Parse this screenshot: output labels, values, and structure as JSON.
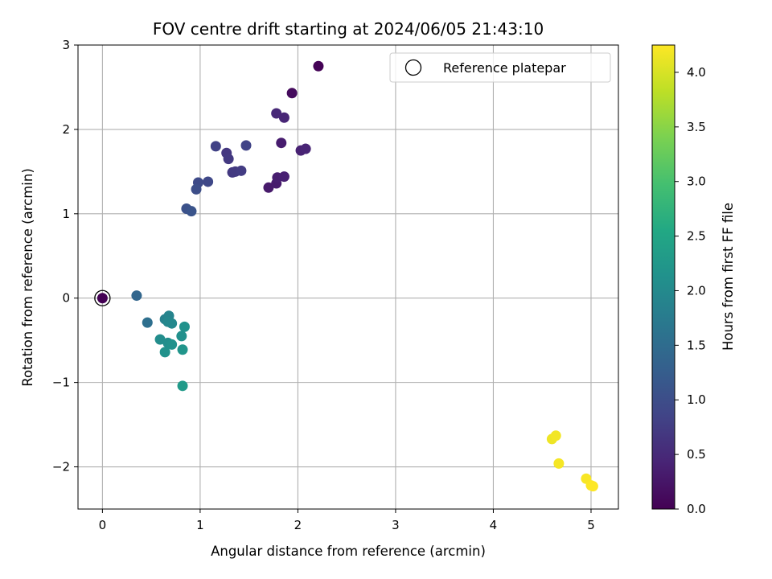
{
  "chart_data": {
    "type": "scatter",
    "title": "FOV centre drift starting at 2024/06/05 21:43:10",
    "xlabel": "Angular distance from reference (arcmin)",
    "ylabel": "Rotation from reference (arcmin)",
    "xlim": [
      -0.25,
      5.28
    ],
    "ylim": [
      -2.5,
      3.0
    ],
    "xticks": [
      0,
      1,
      2,
      3,
      4,
      5
    ],
    "yticks": [
      -2,
      -1,
      0,
      1,
      2,
      3
    ],
    "xtick_labels": [
      "0",
      "1",
      "2",
      "3",
      "4",
      "5"
    ],
    "ytick_labels": [
      "−2",
      "−1",
      "0",
      "1",
      "2",
      "3"
    ],
    "grid": true,
    "colormap": "viridis",
    "colorbar": {
      "label": "Hours from first FF file",
      "range": [
        0.0,
        4.25
      ],
      "ticks": [
        0.0,
        0.5,
        1.0,
        1.5,
        2.0,
        2.5,
        3.0,
        3.5,
        4.0
      ],
      "tick_labels": [
        "0.0",
        "0.5",
        "1.0",
        "1.5",
        "2.0",
        "2.5",
        "3.0",
        "3.5",
        "4.0"
      ]
    },
    "legend": {
      "position": "top-right",
      "entries": [
        {
          "label": "Reference platepar",
          "marker": "open-circle",
          "color": "#000000"
        }
      ]
    },
    "reference_point": {
      "x": 0.0,
      "y": 0.0
    },
    "points": [
      {
        "x": 0.0,
        "y": 0.0,
        "c": 0.0
      },
      {
        "x": 2.21,
        "y": 2.75,
        "c": 0.02
      },
      {
        "x": 1.94,
        "y": 2.43,
        "c": 0.12
      },
      {
        "x": 1.7,
        "y": 1.31,
        "c": 0.3
      },
      {
        "x": 1.78,
        "y": 1.36,
        "c": 0.32
      },
      {
        "x": 1.79,
        "y": 1.43,
        "c": 0.35
      },
      {
        "x": 1.86,
        "y": 1.44,
        "c": 0.38
      },
      {
        "x": 1.83,
        "y": 1.84,
        "c": 0.33
      },
      {
        "x": 2.03,
        "y": 1.75,
        "c": 0.4
      },
      {
        "x": 2.08,
        "y": 1.77,
        "c": 0.42
      },
      {
        "x": 1.78,
        "y": 2.19,
        "c": 0.48
      },
      {
        "x": 1.86,
        "y": 2.14,
        "c": 0.45
      },
      {
        "x": 1.47,
        "y": 1.81,
        "c": 0.85
      },
      {
        "x": 1.33,
        "y": 1.49,
        "c": 0.7
      },
      {
        "x": 1.36,
        "y": 1.5,
        "c": 0.72
      },
      {
        "x": 1.42,
        "y": 1.51,
        "c": 0.75
      },
      {
        "x": 1.27,
        "y": 1.72,
        "c": 0.68
      },
      {
        "x": 1.29,
        "y": 1.65,
        "c": 0.7
      },
      {
        "x": 1.16,
        "y": 1.8,
        "c": 0.82
      },
      {
        "x": 0.98,
        "y": 1.37,
        "c": 0.95
      },
      {
        "x": 0.96,
        "y": 1.29,
        "c": 1.0
      },
      {
        "x": 1.08,
        "y": 1.38,
        "c": 0.92
      },
      {
        "x": 0.86,
        "y": 1.06,
        "c": 1.05
      },
      {
        "x": 0.91,
        "y": 1.03,
        "c": 1.1
      },
      {
        "x": 0.35,
        "y": 0.03,
        "c": 1.4
      },
      {
        "x": 0.46,
        "y": -0.29,
        "c": 1.55
      },
      {
        "x": 0.64,
        "y": -0.25,
        "c": 1.85
      },
      {
        "x": 0.68,
        "y": -0.21,
        "c": 1.9
      },
      {
        "x": 0.67,
        "y": -0.28,
        "c": 1.95
      },
      {
        "x": 0.71,
        "y": -0.3,
        "c": 1.98
      },
      {
        "x": 0.84,
        "y": -0.34,
        "c": 2.15
      },
      {
        "x": 0.81,
        "y": -0.45,
        "c": 2.1
      },
      {
        "x": 0.59,
        "y": -0.49,
        "c": 2.05
      },
      {
        "x": 0.67,
        "y": -0.53,
        "c": 2.08
      },
      {
        "x": 0.71,
        "y": -0.55,
        "c": 2.12
      },
      {
        "x": 0.64,
        "y": -0.64,
        "c": 2.15
      },
      {
        "x": 0.82,
        "y": -0.61,
        "c": 2.2
      },
      {
        "x": 0.82,
        "y": -1.04,
        "c": 2.3
      },
      {
        "x": 4.6,
        "y": -1.67,
        "c": 4.15
      },
      {
        "x": 4.64,
        "y": -1.63,
        "c": 4.18
      },
      {
        "x": 4.67,
        "y": -1.96,
        "c": 4.2
      },
      {
        "x": 4.95,
        "y": -2.14,
        "c": 4.22
      },
      {
        "x": 5.0,
        "y": -2.22,
        "c": 4.24
      },
      {
        "x": 5.02,
        "y": -2.23,
        "c": 4.25
      }
    ]
  }
}
